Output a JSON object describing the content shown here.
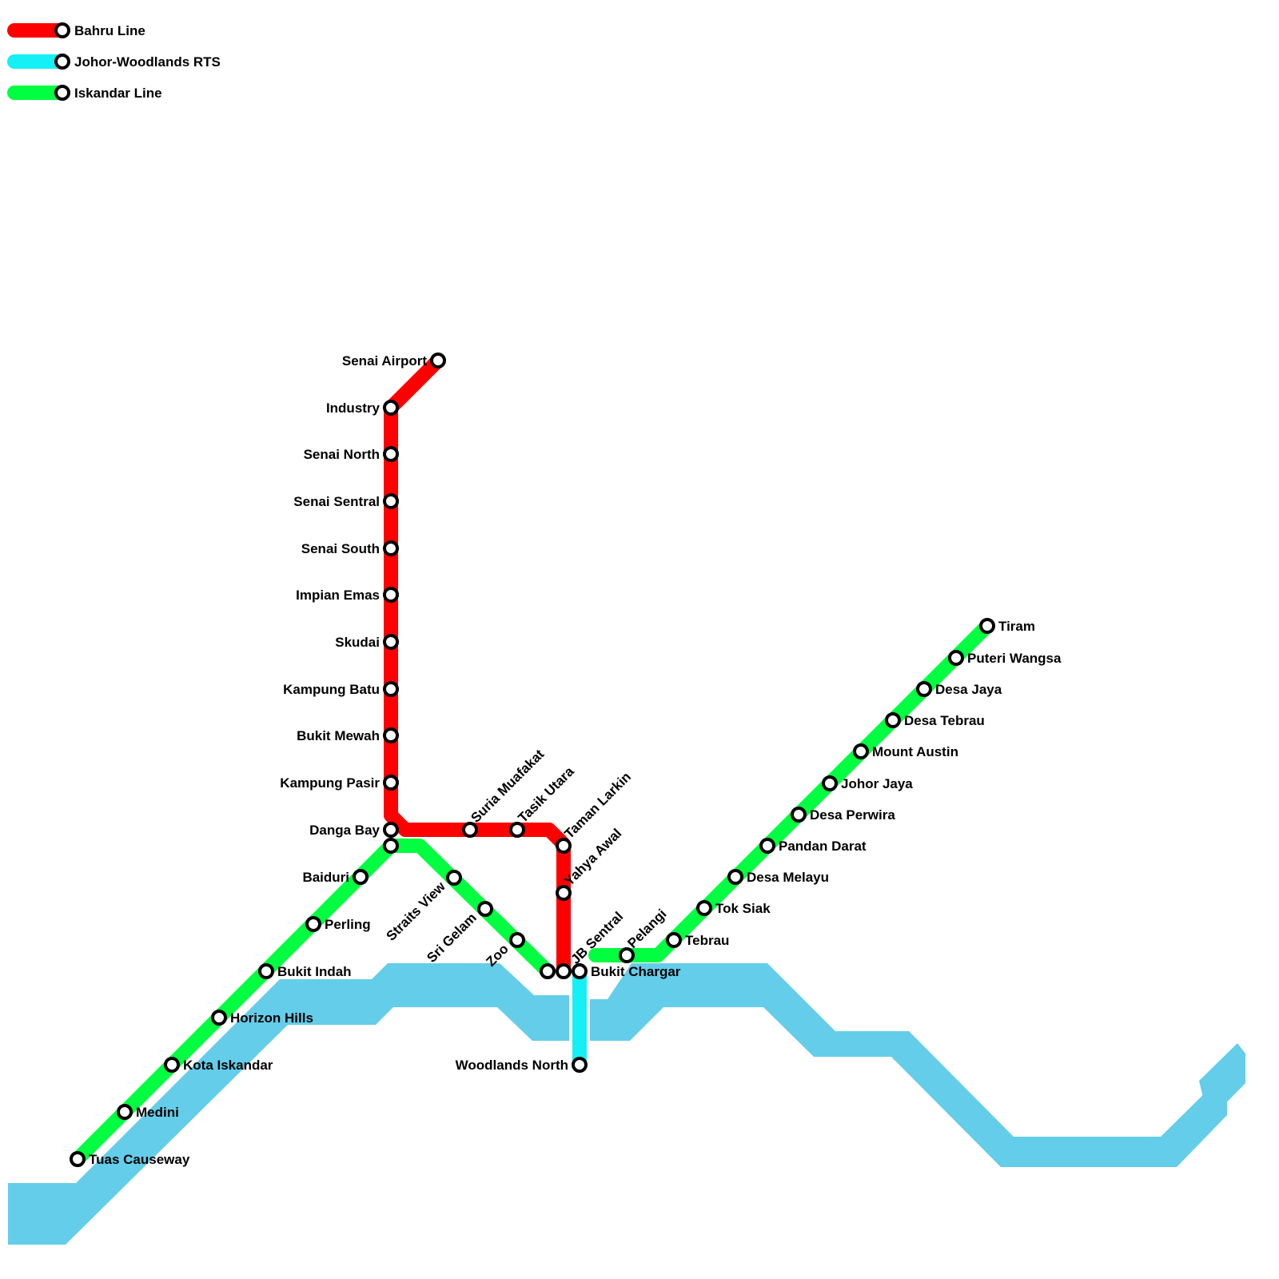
{
  "legend": [
    {
      "label": "Bahru Line",
      "color": "#ff0000"
    },
    {
      "label": "Johor-Woodlands RTS",
      "color": "#14f0f5"
    },
    {
      "label": "Iskandar Line",
      "color": "#00ff40"
    }
  ],
  "water_color": "#64cde9",
  "lines": {
    "bahru": {
      "name": "Bahru Line",
      "color": "#ff0000",
      "stations": [
        "Senai Airport",
        "Industry",
        "Senai North",
        "Senai Sentral",
        "Senai South",
        "Impian Emas",
        "Skudai",
        "Kampung Batu",
        "Bukit Mewah",
        "Kampung Pasir",
        "Danga Bay",
        "Suria Muafakat",
        "Tasik Utara",
        "Taman Larkin",
        "Yahya Awal",
        "JB Sentral"
      ]
    },
    "rts": {
      "name": "Johor-Woodlands RTS",
      "color": "#14f0f5",
      "stations": [
        "Bukit Chargar",
        "Woodlands North"
      ]
    },
    "iskandar_west": {
      "name": "Iskandar Line",
      "color": "#00ff40",
      "stations": [
        "Tuas Causeway",
        "Medini",
        "Kota Iskandar",
        "Horizon Hills",
        "Bukit Indah",
        "Perling",
        "Baiduri",
        "",
        "Straits View",
        "Sri Gelam",
        "Zoo",
        ""
      ]
    },
    "iskandar_east": {
      "name": "Iskandar Line",
      "color": "#00ff40",
      "stations": [
        "Pelangi",
        "Tebrau",
        "Tok Siak",
        "Desa Melayu",
        "Pandan Darat",
        "Desa Perwira",
        "Johor Jaya",
        "Mount Austin",
        "Desa Tebrau",
        "Desa Jaya",
        "Puteri Wangsa",
        "Tiram"
      ]
    }
  }
}
